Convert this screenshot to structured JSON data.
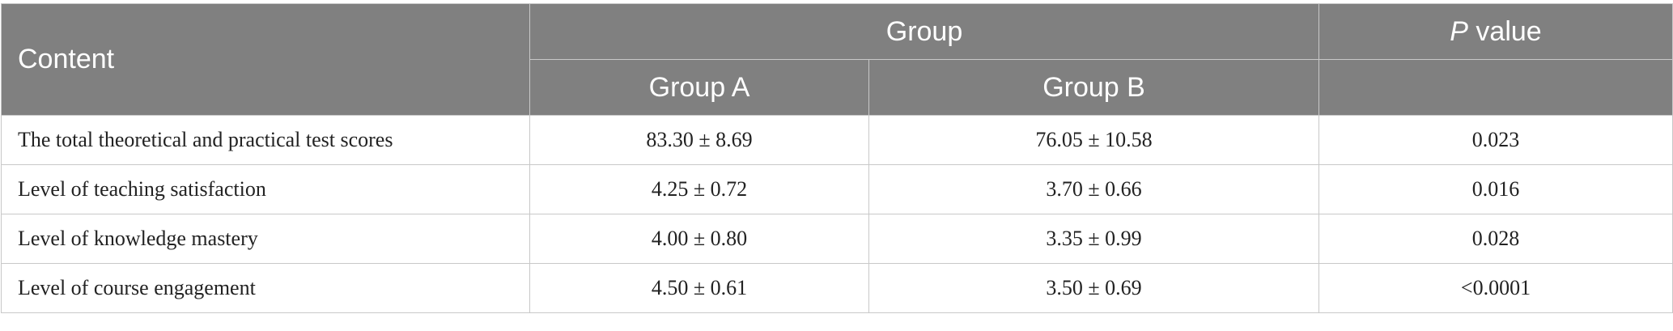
{
  "table": {
    "header": {
      "content": "Content",
      "group": "Group",
      "p_value_italic": "P",
      "p_value_rest": " value",
      "group_a": "Group A",
      "group_b": "Group B"
    },
    "rows": [
      {
        "label": "The total theoretical and practical test scores",
        "group_a": "83.30 ± 8.69",
        "group_b": "76.05 ± 10.58",
        "p": "0.023"
      },
      {
        "label": "Level of teaching satisfaction",
        "group_a": "4.25 ± 0.72",
        "group_b": "3.70 ± 0.66",
        "p": "0.016"
      },
      {
        "label": "Level of knowledge mastery",
        "group_a": "4.00 ± 0.80",
        "group_b": "3.35 ± 0.99",
        "p": "0.028"
      },
      {
        "label": "Level of course engagement",
        "group_a": "4.50 ± 0.61",
        "group_b": "3.50 ± 0.69",
        "p": "<0.0001"
      }
    ]
  }
}
